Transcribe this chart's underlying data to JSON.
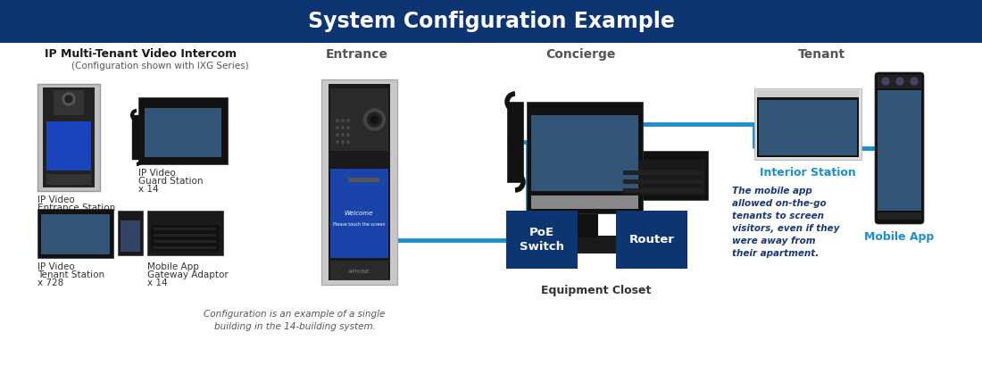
{
  "title": "System Configuration Example",
  "title_bg": "#0d3572",
  "title_color": "#ffffff",
  "title_fontsize": 17,
  "bg_color": "#ffffff",
  "left_title": "IP Multi-Tenant Video Intercom",
  "left_subtitle": "(Configuration shown with IXG Series)",
  "section_entrance": "Entrance",
  "section_concierge": "Concierge",
  "section_tenant": "Tenant",
  "section_label_color": "#555555",
  "note_text": "Configuration is an example of a single\nbuilding in the 14-building system.",
  "mobile_note": "The mobile app\nallowed on-the-go\ntenants to screen\nvisitors, even if they\nwere away from\ntheir apartment.",
  "mobile_note_color": "#1a3a6e",
  "interior_label": "Interior Station",
  "mobile_label": "Mobile App",
  "label_blue": "#1a8fc8",
  "equipment_label": "Equipment Closet",
  "poe_label": "PoE\nSwitch",
  "router_label": "Router",
  "box_color": "#0d3572",
  "line_color": "#1a8fc8",
  "line_width": 3.5,
  "label_color": "#333333"
}
